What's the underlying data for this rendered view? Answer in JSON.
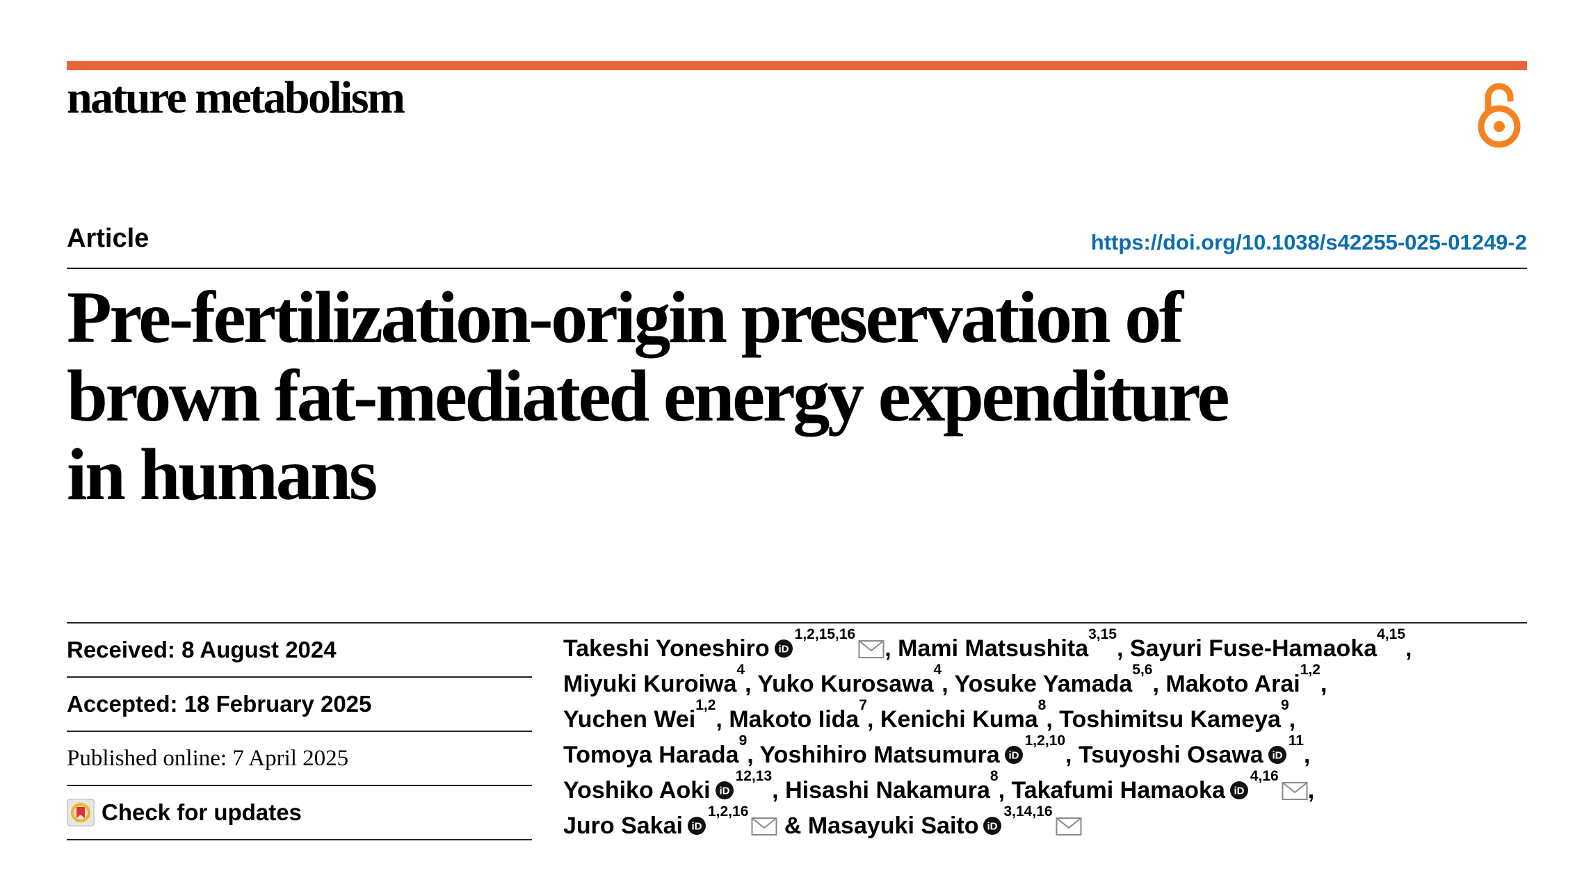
{
  "journal": {
    "name": "nature metabolism",
    "accent_color": "#e8663a",
    "icon": "open-access-icon"
  },
  "header": {
    "article_type": "Article",
    "doi": "https://doi.org/10.1038/s42255-025-01249-2"
  },
  "title_lines": [
    "Pre-fertilization-origin preservation of",
    "brown fat-mediated energy expenditure",
    "in humans"
  ],
  "dates": {
    "received": "Received: 8 August 2024",
    "accepted": "Accepted: 18 February 2025",
    "published": "Published online: 7 April 2025",
    "check_updates": "Check for updates"
  },
  "authors": [
    [
      {
        "name": "Takeshi Yoneshiro",
        "orcid": true,
        "aff": "1,2,15,16",
        "mail": true,
        "sep": ", "
      },
      {
        "name": "Mami Matsushita",
        "orcid": false,
        "aff": "3,15",
        "mail": false,
        "sep": ", "
      },
      {
        "name": "Sayuri Fuse-Hamaoka",
        "orcid": false,
        "aff": "4,15",
        "mail": false,
        "sep": ","
      }
    ],
    [
      {
        "name": "Miyuki Kuroiwa",
        "orcid": false,
        "aff": "4",
        "mail": false,
        "sep": ", "
      },
      {
        "name": "Yuko Kurosawa",
        "orcid": false,
        "aff": "4",
        "mail": false,
        "sep": ", "
      },
      {
        "name": "Yosuke Yamada",
        "orcid": false,
        "aff": "5,6",
        "mail": false,
        "sep": ", "
      },
      {
        "name": "Makoto Arai",
        "orcid": false,
        "aff": "1,2",
        "mail": false,
        "sep": ","
      }
    ],
    [
      {
        "name": "Yuchen Wei",
        "orcid": false,
        "aff": "1,2",
        "mail": false,
        "sep": ", "
      },
      {
        "name": "Makoto Iida",
        "orcid": false,
        "aff": "7",
        "mail": false,
        "sep": ", "
      },
      {
        "name": "Kenichi Kuma",
        "orcid": false,
        "aff": "8",
        "mail": false,
        "sep": ", "
      },
      {
        "name": "Toshimitsu Kameya",
        "orcid": false,
        "aff": "9",
        "mail": false,
        "sep": ","
      }
    ],
    [
      {
        "name": "Tomoya Harada",
        "orcid": false,
        "aff": "9",
        "mail": false,
        "sep": ", "
      },
      {
        "name": "Yoshihiro Matsumura",
        "orcid": true,
        "aff": "1,2,10",
        "mail": false,
        "sep": ", "
      },
      {
        "name": "Tsuyoshi Osawa",
        "orcid": true,
        "aff": "11",
        "mail": false,
        "sep": ","
      }
    ],
    [
      {
        "name": "Yoshiko Aoki",
        "orcid": true,
        "aff": "12,13",
        "mail": false,
        "sep": ", "
      },
      {
        "name": "Hisashi Nakamura",
        "orcid": false,
        "aff": "8",
        "mail": false,
        "sep": ", "
      },
      {
        "name": "Takafumi Hamaoka",
        "orcid": true,
        "aff": "4,16",
        "mail": true,
        "sep": ","
      }
    ],
    [
      {
        "name": "Juro Sakai",
        "orcid": true,
        "aff": "1,2,16",
        "mail": true,
        "sep": " & "
      },
      {
        "name": "Masayuki Saito",
        "orcid": true,
        "aff": "3,14,16",
        "mail": true,
        "sep": ""
      }
    ]
  ],
  "icons": {
    "orcid": "orcid-icon",
    "mail": "mail-icon",
    "check": "check-for-updates-icon"
  }
}
